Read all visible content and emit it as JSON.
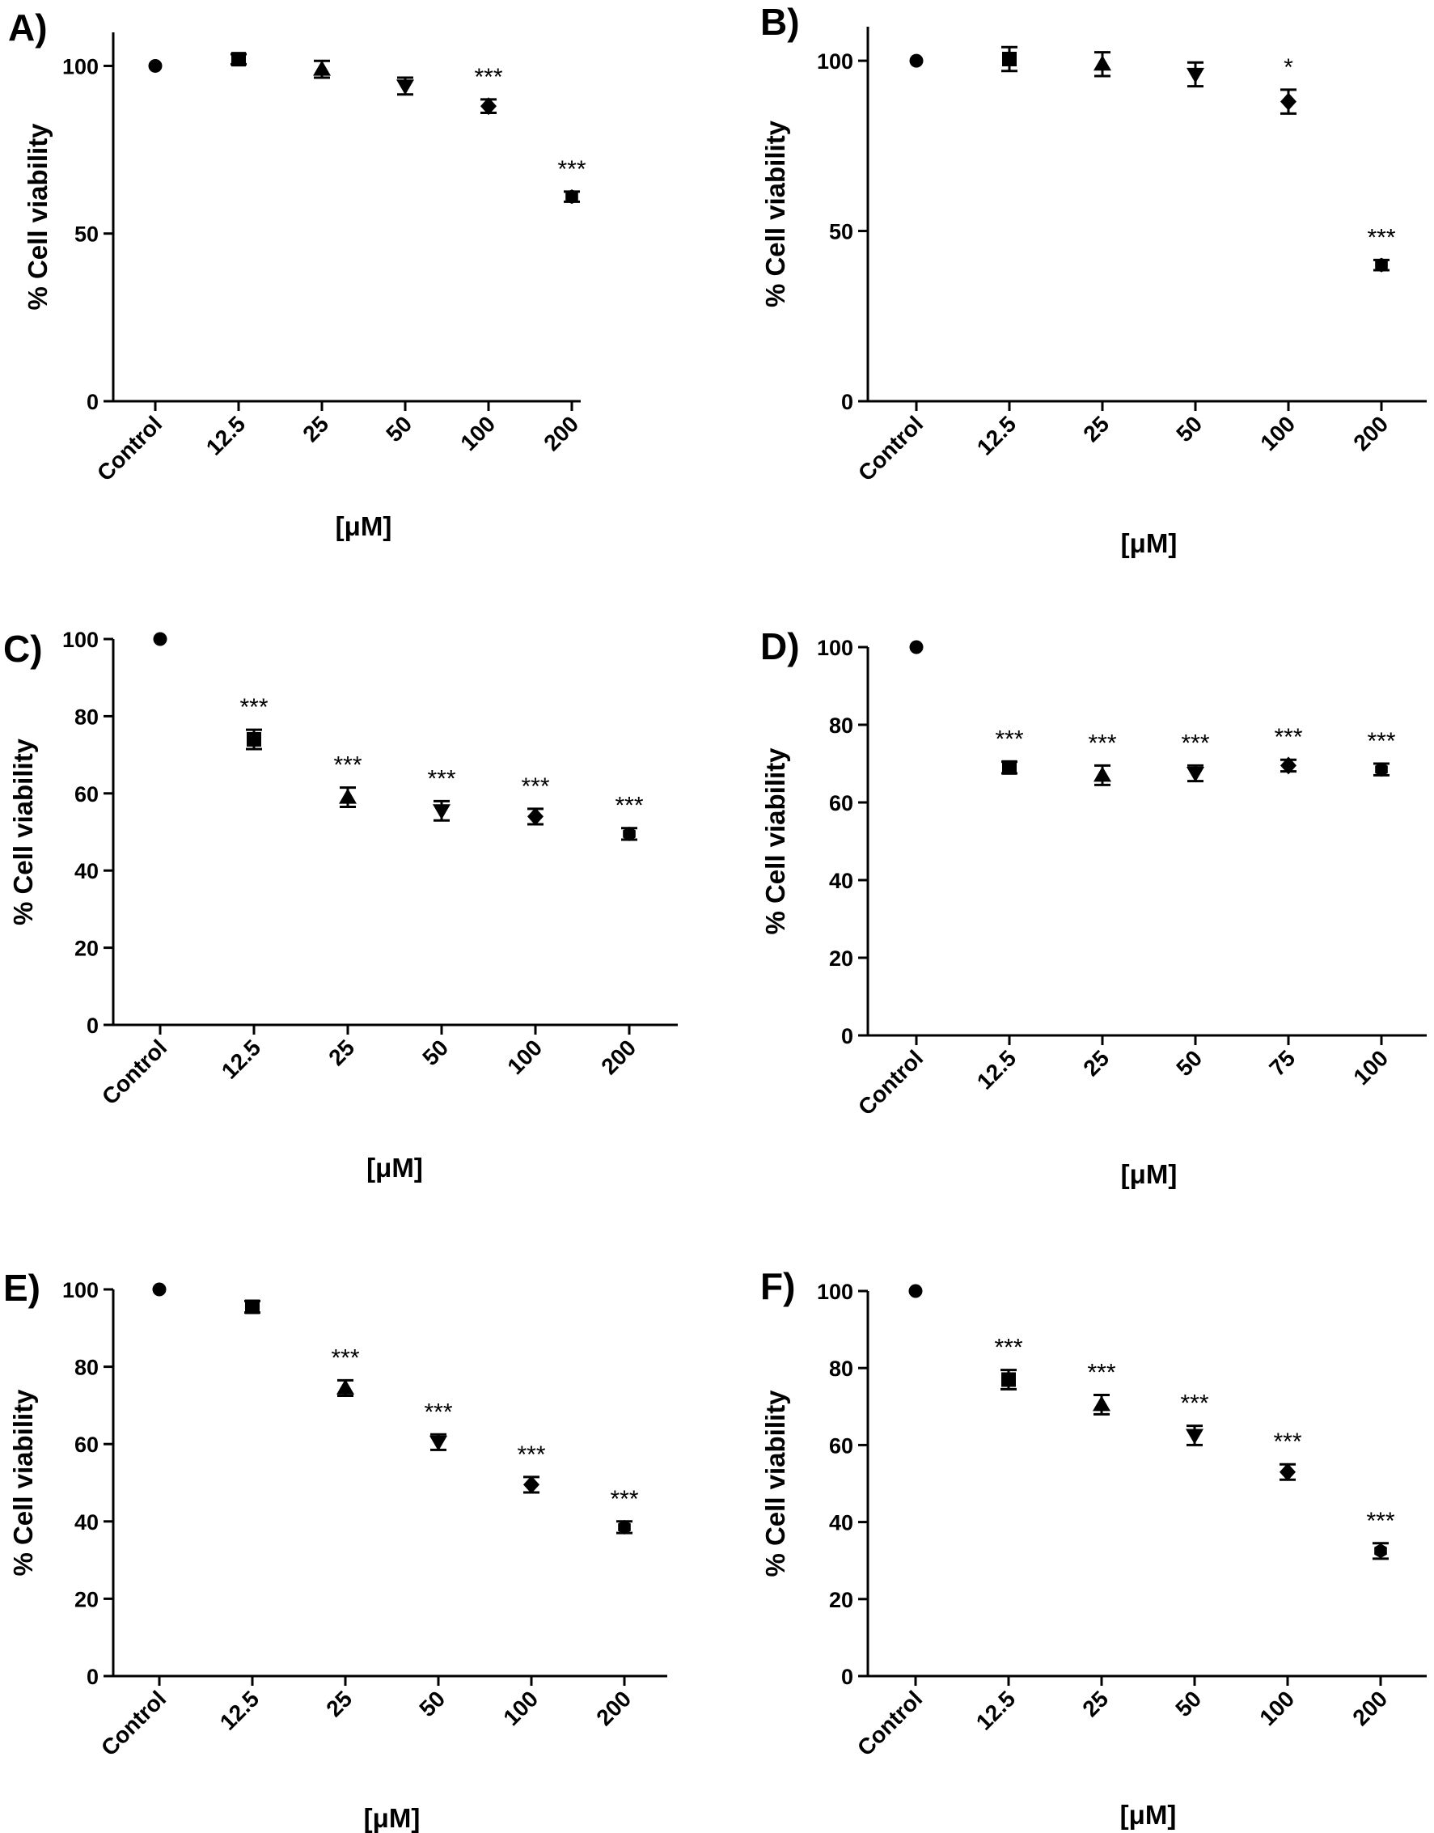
{
  "figure": {
    "x_axis_title": "[μM]",
    "y_axis_title": "% Cell viability"
  },
  "chart_data": [
    {
      "panel": "A)",
      "type": "scatter",
      "xlabel": "[μM]",
      "ylabel": "% Cell viability",
      "ylim": [
        0,
        110
      ],
      "yticks": [
        0,
        50,
        100
      ],
      "categories": [
        "Control",
        "12.5",
        "25",
        "50",
        "100",
        "200"
      ],
      "points": [
        {
          "category": "Control",
          "value": 100,
          "error": 0,
          "marker": "circle",
          "sig": ""
        },
        {
          "category": "12.5",
          "value": 102,
          "error": 1.5,
          "marker": "square",
          "sig": ""
        },
        {
          "category": "25",
          "value": 99,
          "error": 2.5,
          "marker": "triangle-up",
          "sig": ""
        },
        {
          "category": "50",
          "value": 94,
          "error": 2.5,
          "marker": "triangle-down",
          "sig": ""
        },
        {
          "category": "100",
          "value": 88,
          "error": 2,
          "marker": "diamond",
          "sig": "***"
        },
        {
          "category": "200",
          "value": 61,
          "error": 1.5,
          "marker": "hexagon",
          "sig": "***"
        }
      ]
    },
    {
      "panel": "B)",
      "type": "scatter",
      "xlabel": "[μM]",
      "ylabel": "% Cell viability",
      "ylim": [
        0,
        110
      ],
      "yticks": [
        0,
        50,
        100
      ],
      "categories": [
        "Control",
        "12.5",
        "25",
        "50",
        "100",
        "200"
      ],
      "points": [
        {
          "category": "Control",
          "value": 100,
          "error": 0,
          "marker": "circle",
          "sig": ""
        },
        {
          "category": "12.5",
          "value": 100.5,
          "error": 3.5,
          "marker": "square",
          "sig": ""
        },
        {
          "category": "25",
          "value": 99,
          "error": 3.5,
          "marker": "triangle-up",
          "sig": ""
        },
        {
          "category": "50",
          "value": 96,
          "error": 3.5,
          "marker": "triangle-down",
          "sig": ""
        },
        {
          "category": "100",
          "value": 88,
          "error": 3.5,
          "marker": "diamond",
          "sig": "*"
        },
        {
          "category": "200",
          "value": 40,
          "error": 1.5,
          "marker": "hexagon",
          "sig": "***"
        }
      ]
    },
    {
      "panel": "C)",
      "type": "scatter",
      "xlabel": "[μM]",
      "ylabel": "% Cell viability",
      "ylim": [
        0,
        100
      ],
      "yticks": [
        0,
        20,
        40,
        60,
        80,
        100
      ],
      "categories": [
        "Control",
        "12.5",
        "25",
        "50",
        "100",
        "200"
      ],
      "points": [
        {
          "category": "Control",
          "value": 100,
          "error": 0,
          "marker": "circle",
          "sig": ""
        },
        {
          "category": "12.5",
          "value": 74,
          "error": 2.5,
          "marker": "square",
          "sig": "***"
        },
        {
          "category": "25",
          "value": 59,
          "error": 2.5,
          "marker": "triangle-up",
          "sig": "***"
        },
        {
          "category": "50",
          "value": 55.5,
          "error": 2.5,
          "marker": "triangle-down",
          "sig": "***"
        },
        {
          "category": "100",
          "value": 54,
          "error": 2,
          "marker": "diamond",
          "sig": "***"
        },
        {
          "category": "200",
          "value": 49.5,
          "error": 1.5,
          "marker": "hexagon",
          "sig": "***"
        }
      ]
    },
    {
      "panel": "D)",
      "type": "scatter",
      "xlabel": "[μM]",
      "ylabel": "% Cell viability",
      "ylim": [
        0,
        100
      ],
      "yticks": [
        0,
        20,
        40,
        60,
        80,
        100
      ],
      "categories": [
        "Control",
        "12.5",
        "25",
        "50",
        "75",
        "100"
      ],
      "points": [
        {
          "category": "Control",
          "value": 100,
          "error": 0,
          "marker": "circle",
          "sig": ""
        },
        {
          "category": "12.5",
          "value": 69,
          "error": 1.5,
          "marker": "square",
          "sig": "***"
        },
        {
          "category": "25",
          "value": 67,
          "error": 2.5,
          "marker": "triangle-up",
          "sig": "***"
        },
        {
          "category": "50",
          "value": 67.5,
          "error": 2,
          "marker": "triangle-down",
          "sig": "***"
        },
        {
          "category": "75",
          "value": 69.5,
          "error": 1.5,
          "marker": "diamond",
          "sig": "***"
        },
        {
          "category": "100",
          "value": 68.5,
          "error": 1.5,
          "marker": "hexagon",
          "sig": "***"
        }
      ]
    },
    {
      "panel": "E)",
      "type": "scatter",
      "xlabel": "[μM]",
      "ylabel": "% Cell viability",
      "ylim": [
        0,
        100
      ],
      "yticks": [
        0,
        20,
        40,
        60,
        80,
        100
      ],
      "categories": [
        "Control",
        "12.5",
        "25",
        "50",
        "100",
        "200"
      ],
      "points": [
        {
          "category": "Control",
          "value": 100,
          "error": 0,
          "marker": "circle",
          "sig": ""
        },
        {
          "category": "12.5",
          "value": 95.5,
          "error": 1.5,
          "marker": "square",
          "sig": ""
        },
        {
          "category": "25",
          "value": 74.5,
          "error": 2,
          "marker": "triangle-up",
          "sig": "***"
        },
        {
          "category": "50",
          "value": 60.5,
          "error": 2,
          "marker": "triangle-down",
          "sig": "***"
        },
        {
          "category": "100",
          "value": 49.5,
          "error": 2,
          "marker": "diamond",
          "sig": "***"
        },
        {
          "category": "200",
          "value": 38.5,
          "error": 1.5,
          "marker": "hexagon",
          "sig": "***"
        }
      ]
    },
    {
      "panel": "F)",
      "type": "scatter",
      "xlabel": "[μM]",
      "ylabel": "% Cell viability",
      "ylim": [
        0,
        100
      ],
      "yticks": [
        0,
        20,
        40,
        60,
        80,
        100
      ],
      "categories": [
        "Control",
        "12.5",
        "25",
        "50",
        "100",
        "200"
      ],
      "points": [
        {
          "category": "Control",
          "value": 100,
          "error": 0,
          "marker": "circle",
          "sig": ""
        },
        {
          "category": "12.5",
          "value": 77,
          "error": 2.5,
          "marker": "square",
          "sig": "***"
        },
        {
          "category": "25",
          "value": 70.5,
          "error": 2.5,
          "marker": "triangle-up",
          "sig": "***"
        },
        {
          "category": "50",
          "value": 62.5,
          "error": 2.5,
          "marker": "triangle-down",
          "sig": "***"
        },
        {
          "category": "100",
          "value": 53,
          "error": 2,
          "marker": "diamond",
          "sig": "***"
        },
        {
          "category": "200",
          "value": 32.5,
          "error": 2,
          "marker": "hexagon",
          "sig": "***"
        }
      ]
    }
  ]
}
